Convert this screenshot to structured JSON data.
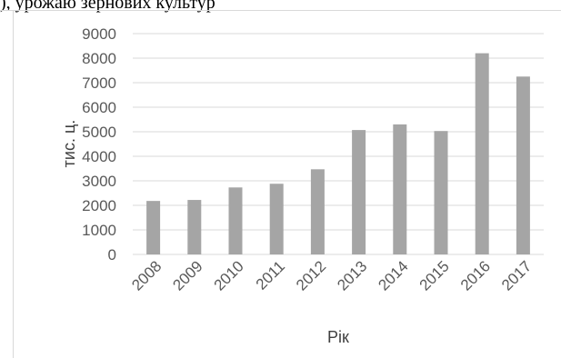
{
  "header_text": "), урожаю зернових культур",
  "chart_data": {
    "type": "bar",
    "categories": [
      "2008",
      "2009",
      "2010",
      "2011",
      "2012",
      "2013",
      "2014",
      "2015",
      "2016",
      "2017"
    ],
    "values": [
      2180,
      2220,
      2730,
      2880,
      3470,
      5070,
      5300,
      5030,
      8200,
      7250
    ],
    "ylabel": "тис. ц.",
    "xlabel": "Рік",
    "ylim": [
      0,
      9000
    ],
    "yticks": [
      "0",
      "1000",
      "2000",
      "3000",
      "4000",
      "5000",
      "6000",
      "7000",
      "8000",
      "9000"
    ],
    "grid": true,
    "legend": "none",
    "bar_color": "#a5a5a5",
    "grid_color": "#d9d9d9"
  }
}
